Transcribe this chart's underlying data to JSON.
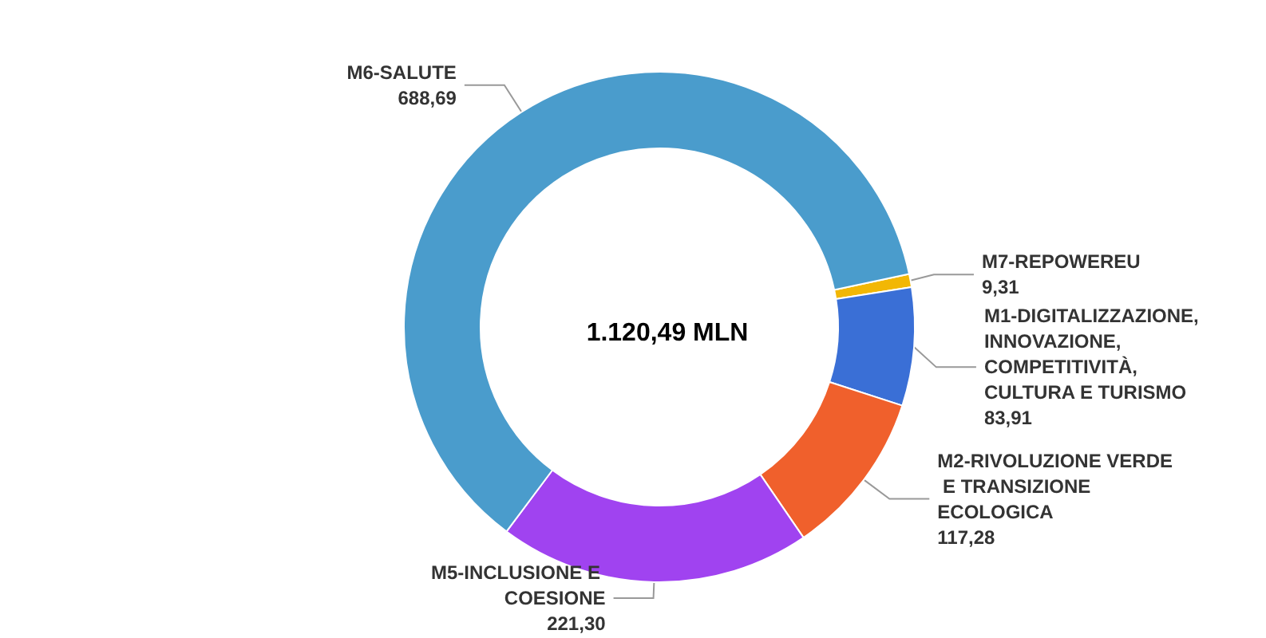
{
  "chart_data": {
    "type": "donut",
    "title": "1.120,49 MLN",
    "categories": [
      "M7-REPOWEREU",
      "M1-DIGITALIZZAZIONE, INNOVAZIONE, COMPETITIVITÀ, CULTURA E TURISMO",
      "M2-RIVOLUZIONE VERDE E TRANSIZIONE ECOLOGICA",
      "M5-INCLUSIONE E COESIONE",
      "M6-SALUTE"
    ],
    "values": [
      9.31,
      83.91,
      117.28,
      221.3,
      688.69
    ],
    "value_labels": [
      "9,31",
      "83,91",
      "117,28",
      "221,30",
      "688,69"
    ],
    "colors": [
      "#f2b705",
      "#3a6fd6",
      "#f0602c",
      "#a043f0",
      "#4a9ccc"
    ]
  }
}
